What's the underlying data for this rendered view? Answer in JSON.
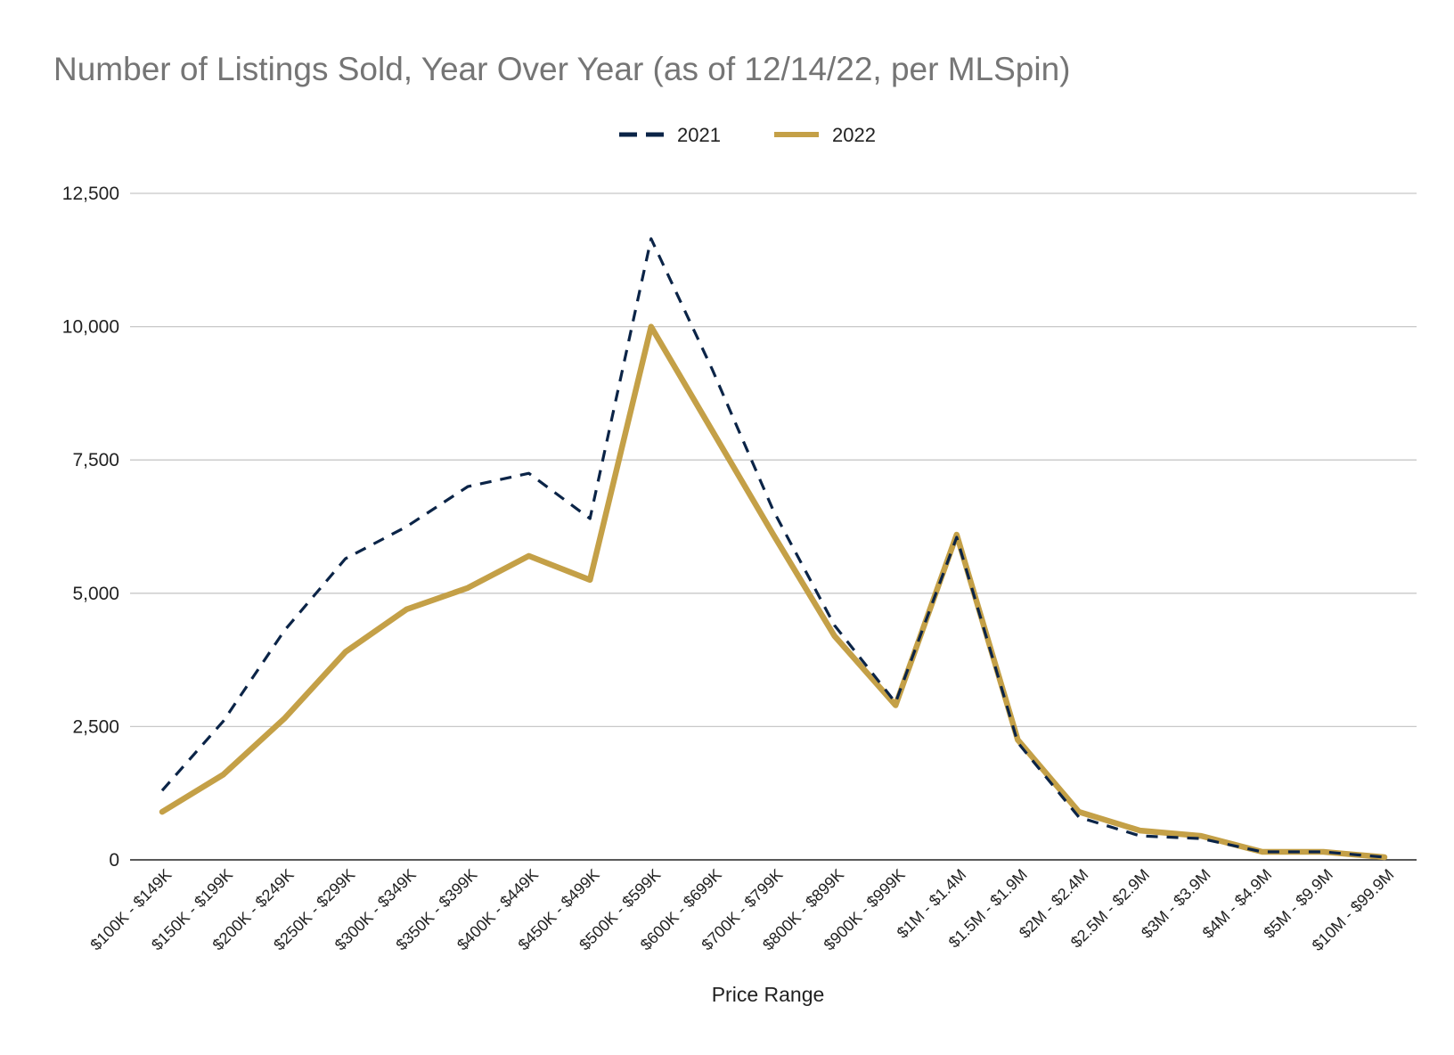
{
  "chart_data": {
    "type": "line",
    "title": "Number of Listings Sold, Year Over Year (as of 12/14/22, per MLSpin)",
    "xlabel": "Price Range",
    "ylabel": "",
    "ylim": [
      0,
      12500
    ],
    "yticks": [
      "0",
      "2,500",
      "5,000",
      "7,500",
      "10,000",
      "12,500"
    ],
    "ytick_values": [
      0,
      2500,
      5000,
      7500,
      10000,
      12500
    ],
    "grid": true,
    "legend_position": "top-center",
    "categories": [
      "$100K - $149K",
      "$150K - $199K",
      "$200K - $249K",
      "$250K - $299K",
      "$300K - $349K",
      "$350K - $399K",
      "$400K - $449K",
      "$450K - $499K",
      "$500K - $599K",
      "$600K - $699K",
      "$700K - $799K",
      "$800K - $899K",
      "$900K - $999K",
      "$1M - $1.4M",
      "$1.5M - $1.9M",
      "$2M - $2.4M",
      "$2.5M - $2.9M",
      "$3M - $3.9M",
      "$4M - $4.9M",
      "$5M - $9.9M",
      "$10M - $99.9M"
    ],
    "series": [
      {
        "name": "2021",
        "color": "#0b2447",
        "style": "dashed",
        "values": [
          1300,
          2600,
          4300,
          5650,
          6250,
          7000,
          7250,
          6400,
          11650,
          9200,
          6550,
          4400,
          2950,
          6050,
          2200,
          800,
          450,
          400,
          150,
          150,
          50
        ]
      },
      {
        "name": "2022",
        "color": "#c4a047",
        "style": "solid",
        "values": [
          900,
          1600,
          2650,
          3900,
          4700,
          5100,
          5700,
          5250,
          10000,
          8050,
          6100,
          4200,
          2900,
          6100,
          2250,
          900,
          550,
          450,
          150,
          150,
          50
        ]
      }
    ]
  }
}
